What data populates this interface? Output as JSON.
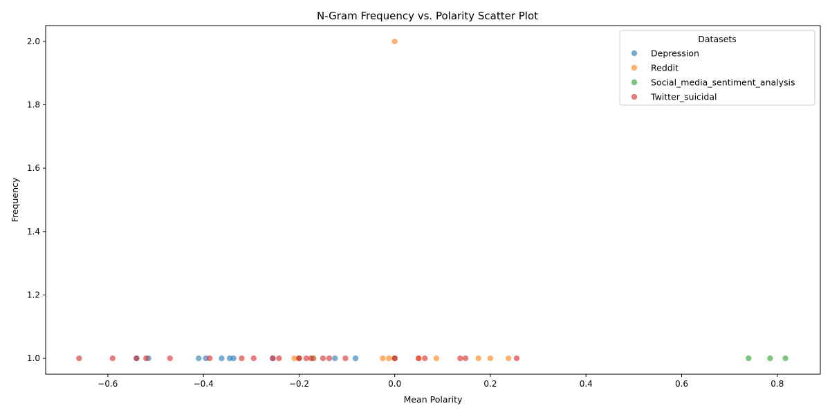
{
  "chart_data": {
    "type": "scatter",
    "title": "N-Gram Frequency vs. Polarity Scatter Plot",
    "xlabel": "Mean Polarity",
    "ylabel": "Frequency",
    "xlim": [
      -0.73,
      0.89
    ],
    "ylim": [
      0.95,
      2.05
    ],
    "xticks": [
      -0.6,
      -0.4,
      -0.2,
      0.0,
      0.2,
      0.4,
      0.6,
      0.8
    ],
    "xtick_labels": [
      "−0.6",
      "−0.4",
      "−0.2",
      "0.0",
      "0.2",
      "0.4",
      "0.6",
      "0.8"
    ],
    "yticks": [
      1.0,
      1.2,
      1.4,
      1.6,
      1.8,
      2.0
    ],
    "ytick_labels": [
      "1.0",
      "1.2",
      "1.4",
      "1.6",
      "1.8",
      "2.0"
    ],
    "grid": false,
    "legend": {
      "title": "Datasets",
      "placement": "top-right"
    },
    "series": [
      {
        "name": "Depression",
        "color": "#1f77b4",
        "points": [
          [
            -0.54,
            1
          ],
          [
            -0.515,
            1
          ],
          [
            -0.41,
            1
          ],
          [
            -0.395,
            1
          ],
          [
            -0.362,
            1
          ],
          [
            -0.345,
            1
          ],
          [
            -0.337,
            1
          ],
          [
            -0.255,
            1
          ],
          [
            -0.2,
            1
          ],
          [
            -0.17,
            1
          ],
          [
            -0.125,
            1
          ],
          [
            -0.082,
            1
          ],
          [
            0.0,
            1
          ]
        ]
      },
      {
        "name": "Reddit",
        "color": "#ff7f0e",
        "points": [
          [
            0.0,
            2
          ],
          [
            -0.21,
            1
          ],
          [
            -0.2,
            1
          ],
          [
            -0.17,
            1
          ],
          [
            -0.025,
            1
          ],
          [
            -0.012,
            1
          ],
          [
            0.0,
            1
          ],
          [
            0.05,
            1
          ],
          [
            0.087,
            1
          ],
          [
            0.175,
            1
          ],
          [
            0.2,
            1
          ],
          [
            0.238,
            1
          ]
        ]
      },
      {
        "name": "Social_media_sentiment_analysis",
        "color": "#2ca02c",
        "points": [
          [
            0.74,
            1
          ],
          [
            0.785,
            1
          ],
          [
            0.817,
            1
          ]
        ]
      },
      {
        "name": "Twitter_suicidal",
        "color": "#d62728",
        "points": [
          [
            -0.66,
            1
          ],
          [
            -0.59,
            1
          ],
          [
            -0.54,
            1
          ],
          [
            -0.52,
            1
          ],
          [
            -0.47,
            1
          ],
          [
            -0.387,
            1
          ],
          [
            -0.32,
            1
          ],
          [
            -0.295,
            1
          ],
          [
            -0.255,
            1
          ],
          [
            -0.242,
            1
          ],
          [
            -0.2,
            1
          ],
          [
            -0.185,
            1
          ],
          [
            -0.175,
            1
          ],
          [
            -0.15,
            1
          ],
          [
            -0.137,
            1
          ],
          [
            -0.103,
            1
          ],
          [
            0.0,
            1
          ],
          [
            0.05,
            1
          ],
          [
            0.063,
            1
          ],
          [
            0.137,
            1
          ],
          [
            0.148,
            1
          ],
          [
            0.255,
            1
          ]
        ]
      }
    ]
  }
}
